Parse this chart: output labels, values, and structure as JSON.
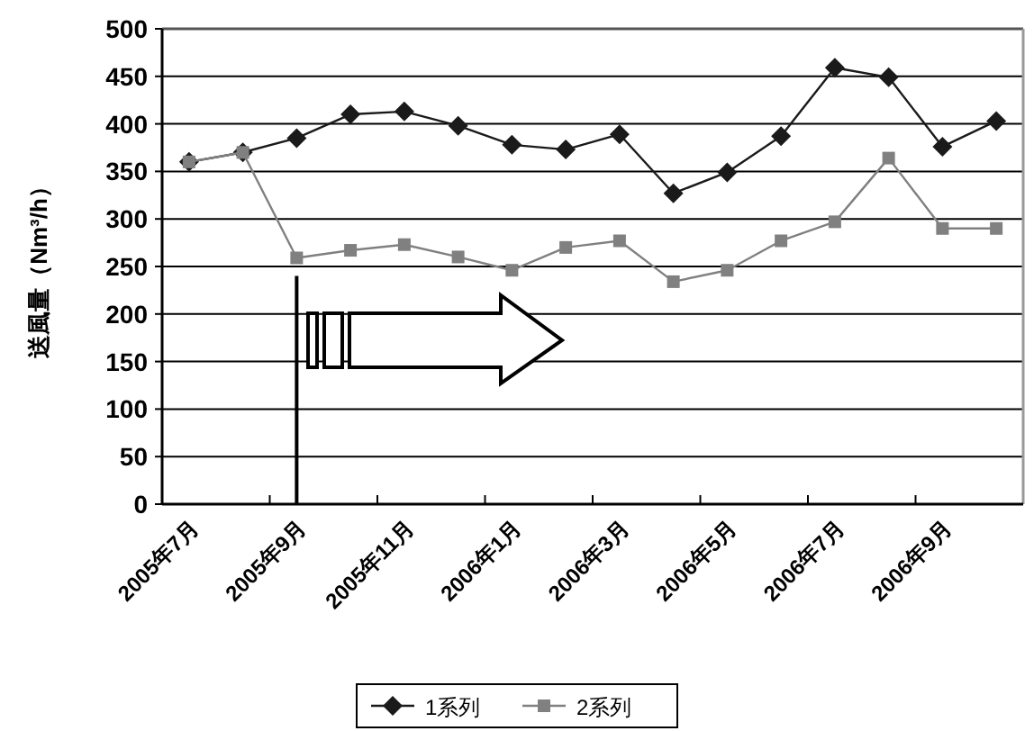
{
  "chart_data": {
    "type": "line",
    "ylabel": "送風量（Nm³/h）",
    "categories": [
      "2005年7月",
      null,
      "2005年9月",
      null,
      "2005年11月",
      null,
      "2006年1月",
      null,
      "2006年3月",
      null,
      "2006年5月",
      null,
      "2006年7月",
      null,
      "2006年9月",
      null
    ],
    "series": [
      {
        "name": "1系列",
        "color": "#1a1a1a",
        "marker": "diamond",
        "values": [
          360,
          370,
          385,
          410,
          413,
          398,
          378,
          373,
          389,
          327,
          349,
          387,
          459,
          449,
          376,
          403
        ]
      },
      {
        "name": "2系列",
        "color": "#808080",
        "marker": "square",
        "values": [
          360,
          370,
          259,
          267,
          273,
          260,
          246,
          270,
          277,
          234,
          246,
          277,
          297,
          364,
          290,
          290
        ]
      }
    ],
    "ylim": [
      0,
      500
    ],
    "yticks": [
      0,
      50,
      100,
      150,
      200,
      250,
      300,
      350,
      400,
      450,
      500
    ],
    "grid": "y",
    "legend": "bottom",
    "ref_lines": [
      {
        "axis": "x",
        "value": "2005年9月",
        "color": "#000000",
        "line_style": "solid"
      }
    ]
  }
}
